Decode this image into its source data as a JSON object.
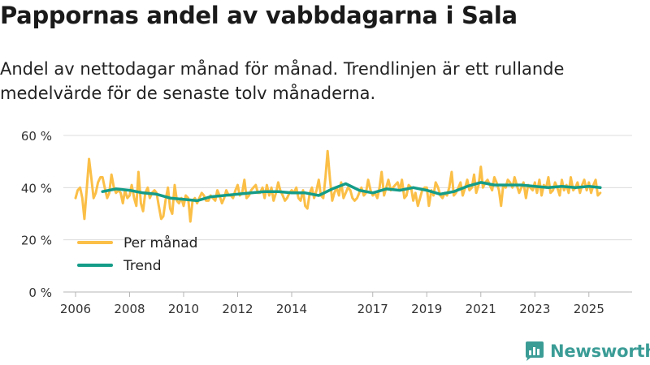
{
  "title": "Pappornas andel av vabbdagarna i Sala",
  "subtitle": "Andel av nettodagar månad för månad. Trendlinjen är ett rullande medelvärde för de senaste tolv månaderna.",
  "brand": {
    "name": "Newsworthy",
    "icon": "newsworthy-logo-icon",
    "color": "#3b9c96"
  },
  "chart_data": {
    "type": "line",
    "title": "Pappornas andel av vabbdagarna i Sala",
    "xlabel": "",
    "ylabel": "",
    "xlim": [
      2005.55,
      2026.6
    ],
    "ylim": [
      0,
      60
    ],
    "y_ticks": [
      0,
      20,
      40,
      60
    ],
    "y_tick_labels": [
      "0 %",
      "20 %",
      "40 %",
      "60 %"
    ],
    "x_ticks": [
      2006,
      2008,
      2010,
      2012,
      2014,
      2017,
      2019,
      2021,
      2023,
      2025
    ],
    "x_tick_labels": [
      "2006",
      "2008",
      "2010",
      "2012",
      "2014",
      "2017",
      "2019",
      "2021",
      "2023",
      "2025"
    ],
    "grid": true,
    "legend_position": "bottom-left",
    "series": [
      {
        "name": "Per månad",
        "color": "#fbbf47",
        "x": [
          2006.0,
          2006.08,
          2006.17,
          2006.25,
          2006.33,
          2006.42,
          2006.5,
          2006.58,
          2006.67,
          2006.75,
          2006.83,
          2006.92,
          2007.0,
          2007.08,
          2007.17,
          2007.25,
          2007.33,
          2007.42,
          2007.5,
          2007.58,
          2007.67,
          2007.75,
          2007.83,
          2007.92,
          2008.0,
          2008.08,
          2008.17,
          2008.25,
          2008.33,
          2008.42,
          2008.5,
          2008.58,
          2008.67,
          2008.75,
          2008.83,
          2008.92,
          2009.0,
          2009.08,
          2009.17,
          2009.25,
          2009.33,
          2009.42,
          2009.5,
          2009.58,
          2009.67,
          2009.75,
          2009.83,
          2009.92,
          2010.0,
          2010.08,
          2010.17,
          2010.25,
          2010.33,
          2010.42,
          2010.5,
          2010.58,
          2010.67,
          2010.75,
          2010.83,
          2010.92,
          2011.0,
          2011.08,
          2011.17,
          2011.25,
          2011.33,
          2011.42,
          2011.5,
          2011.58,
          2011.67,
          2011.75,
          2011.83,
          2011.92,
          2012.0,
          2012.08,
          2012.17,
          2012.25,
          2012.33,
          2012.42,
          2012.5,
          2012.58,
          2012.67,
          2012.75,
          2012.83,
          2012.92,
          2013.0,
          2013.08,
          2013.17,
          2013.25,
          2013.33,
          2013.42,
          2013.5,
          2013.58,
          2013.67,
          2013.75,
          2013.83,
          2013.92,
          2014.0,
          2014.08,
          2014.17,
          2014.25,
          2014.33,
          2014.42,
          2014.5,
          2014.58,
          2014.67,
          2014.75,
          2014.83,
          2014.92,
          2015.0,
          2015.08,
          2015.17,
          2015.25,
          2015.33,
          2015.42,
          2015.5,
          2015.58,
          2015.67,
          2015.75,
          2015.83,
          2015.92,
          2016.0,
          2016.08,
          2016.17,
          2016.25,
          2016.33,
          2016.42,
          2016.5,
          2016.58,
          2016.67,
          2016.75,
          2016.83,
          2016.92,
          2017.0,
          2017.08,
          2017.17,
          2017.25,
          2017.33,
          2017.42,
          2017.5,
          2017.58,
          2017.67,
          2017.75,
          2017.83,
          2017.92,
          2018.0,
          2018.08,
          2018.17,
          2018.25,
          2018.33,
          2018.42,
          2018.5,
          2018.58,
          2018.67,
          2018.75,
          2018.83,
          2018.92,
          2019.0,
          2019.08,
          2019.17,
          2019.25,
          2019.33,
          2019.42,
          2019.5,
          2019.58,
          2019.67,
          2019.75,
          2019.83,
          2019.92,
          2020.0,
          2020.08,
          2020.17,
          2020.25,
          2020.33,
          2020.42,
          2020.5,
          2020.58,
          2020.67,
          2020.75,
          2020.83,
          2020.92,
          2021.0,
          2021.08,
          2021.17,
          2021.25,
          2021.33,
          2021.42,
          2021.5,
          2021.58,
          2021.67,
          2021.75,
          2021.83,
          2021.92,
          2022.0,
          2022.08,
          2022.17,
          2022.25,
          2022.33,
          2022.42,
          2022.5,
          2022.58,
          2022.67,
          2022.75,
          2022.83,
          2022.92,
          2023.0,
          2023.08,
          2023.17,
          2023.25,
          2023.33,
          2023.42,
          2023.5,
          2023.58,
          2023.67,
          2023.75,
          2023.83,
          2023.92,
          2024.0,
          2024.08,
          2024.17,
          2024.25,
          2024.33,
          2024.42,
          2024.5,
          2024.58,
          2024.67,
          2024.75,
          2024.83,
          2024.92,
          2025.0,
          2025.08,
          2025.17,
          2025.25,
          2025.33,
          2025.42
        ],
        "y": [
          36,
          39,
          40,
          36,
          28,
          40,
          51,
          44,
          36,
          38,
          42,
          44,
          44,
          40,
          36,
          38,
          45,
          40,
          38,
          39,
          38,
          34,
          39,
          36,
          37,
          41,
          36,
          33,
          46,
          34,
          31,
          38,
          40,
          36,
          38,
          39,
          38,
          33,
          28,
          29,
          35,
          40,
          32,
          30,
          41,
          35,
          34,
          36,
          33,
          37,
          36,
          27,
          35,
          36,
          34,
          36,
          38,
          37,
          35,
          35,
          37,
          36,
          35,
          39,
          37,
          34,
          36,
          39,
          37,
          37,
          36,
          39,
          41,
          37,
          38,
          43,
          36,
          37,
          39,
          40,
          41,
          38,
          38,
          40,
          36,
          41,
          37,
          40,
          35,
          38,
          42,
          39,
          37,
          35,
          36,
          38,
          39,
          38,
          40,
          36,
          35,
          39,
          33,
          32,
          38,
          40,
          36,
          39,
          43,
          37,
          36,
          44,
          54,
          43,
          35,
          38,
          40,
          37,
          42,
          36,
          38,
          40,
          39,
          36,
          35,
          36,
          38,
          40,
          37,
          38,
          43,
          39,
          37,
          38,
          36,
          40,
          46,
          37,
          40,
          43,
          39,
          40,
          41,
          42,
          39,
          43,
          36,
          37,
          41,
          40,
          35,
          38,
          33,
          36,
          39,
          40,
          40,
          33,
          39,
          37,
          42,
          40,
          37,
          36,
          38,
          37,
          40,
          46,
          37,
          38,
          40,
          42,
          37,
          40,
          43,
          39,
          40,
          45,
          38,
          41,
          48,
          40,
          42,
          43,
          41,
          39,
          44,
          42,
          39,
          33,
          41,
          40,
          43,
          42,
          40,
          44,
          41,
          38,
          40,
          42,
          36,
          41,
          40,
          39,
          42,
          38,
          43,
          37,
          41,
          40,
          44,
          38,
          39,
          42,
          40,
          37,
          43,
          39,
          41,
          38,
          44,
          39,
          40,
          42,
          38,
          41,
          43,
          39,
          42,
          38,
          41,
          43,
          37,
          38
        ]
      },
      {
        "name": "Trend",
        "color": "#149c88",
        "x": [
          2007.0,
          2007.5,
          2008.0,
          2008.5,
          2009.0,
          2009.5,
          2010.0,
          2010.5,
          2011.0,
          2011.5,
          2012.0,
          2012.5,
          2013.0,
          2013.5,
          2014.0,
          2014.5,
          2015.0,
          2015.5,
          2016.0,
          2016.5,
          2017.0,
          2017.5,
          2018.0,
          2018.5,
          2019.0,
          2019.5,
          2020.0,
          2020.5,
          2021.0,
          2021.5,
          2022.0,
          2022.5,
          2023.0,
          2023.5,
          2024.0,
          2024.5,
          2025.0,
          2025.42
        ],
        "y": [
          38.5,
          39.5,
          39.0,
          38.0,
          37.5,
          36.0,
          35.5,
          35.0,
          36.5,
          37.0,
          37.5,
          38.0,
          38.5,
          38.5,
          38.0,
          38.0,
          37.0,
          39.5,
          41.5,
          39.0,
          38.0,
          39.5,
          39.0,
          40.0,
          39.0,
          37.5,
          38.5,
          40.5,
          42.0,
          41.0,
          41.0,
          41.0,
          40.5,
          40.0,
          40.5,
          40.0,
          40.5,
          40.0
        ]
      }
    ]
  }
}
